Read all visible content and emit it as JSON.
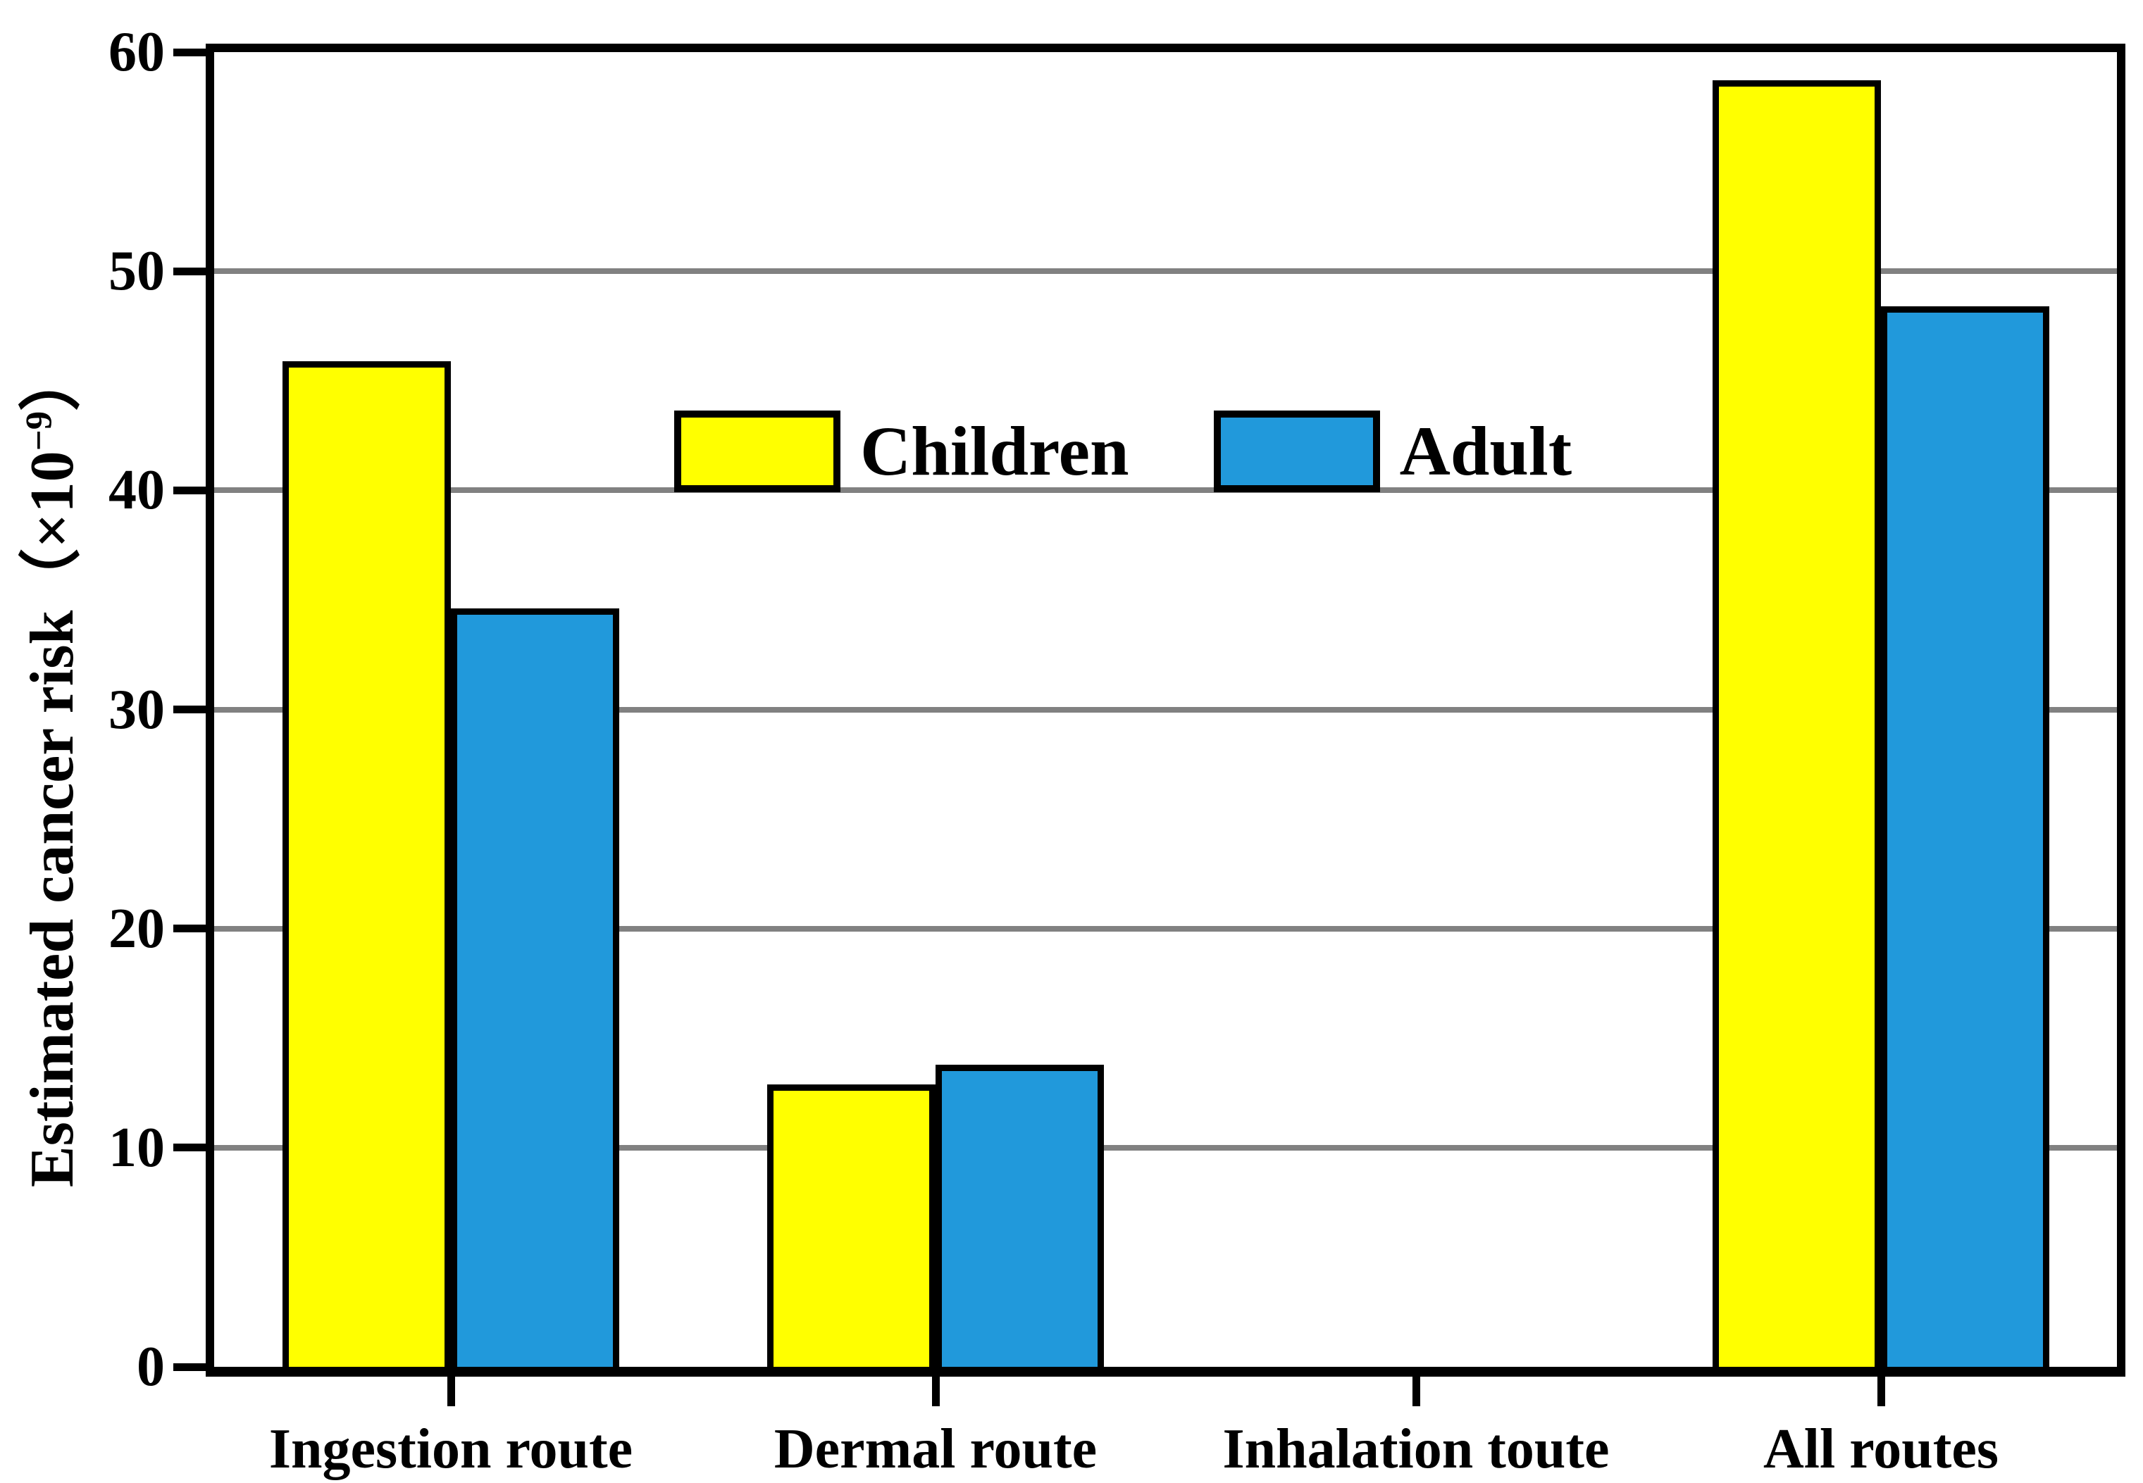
{
  "y_axis": {
    "label_prefix": "Estimated cancer risk（×10",
    "label_sup": "−9",
    "label_suffix": "）",
    "tick_labels": [
      "0",
      "10",
      "20",
      "30",
      "40",
      "50",
      "60"
    ]
  },
  "x_axis": {
    "categories": [
      "Ingestion route",
      "Dermal route",
      "Inhalation toute",
      "All routes"
    ]
  },
  "legend": {
    "items": [
      {
        "label": "Children",
        "color": "#ffff00"
      },
      {
        "label": "Adult",
        "color": "#2199db"
      }
    ]
  },
  "chart_data": {
    "type": "bar",
    "title": "",
    "xlabel": "",
    "ylabel": "Estimated cancer risk（×10−9）",
    "categories": [
      "Ingestion route",
      "Dermal route",
      "Inhalation toute",
      "All routes"
    ],
    "series": [
      {
        "name": "Children",
        "color": "#ffff00",
        "values": [
          45.9,
          12.9,
          0,
          58.7
        ]
      },
      {
        "name": "Adult",
        "color": "#2199db",
        "values": [
          34.6,
          13.8,
          0,
          48.4
        ]
      }
    ],
    "ylim": [
      0,
      60
    ],
    "ytick_step": 10,
    "grid": true,
    "gridline_values": [
      10,
      20,
      30,
      40,
      50
    ],
    "gridline_color": "#818181",
    "axis_color": "#000000",
    "legend_position": "inside-upper-center"
  }
}
